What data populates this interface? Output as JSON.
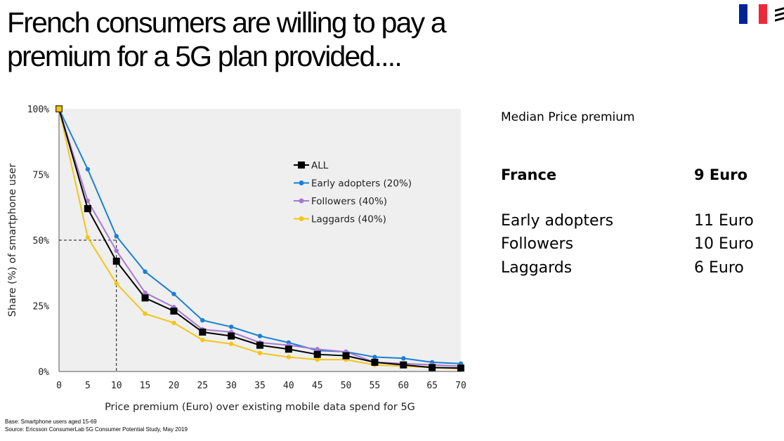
{
  "header": {
    "title_line1": "French consumers are willing to pay a",
    "title_line2": "premium for a 5G plan provided...."
  },
  "flag_colors": [
    "#002395",
    "#ffffff",
    "#ED2939"
  ],
  "logo_icon": "ericsson-logo-icon",
  "chart_data": {
    "type": "line",
    "xlabel": "Price premium (Euro) over existing mobile data spend for 5G",
    "ylabel": "Share (%) of smartphone user",
    "x": [
      0,
      5,
      10,
      15,
      20,
      25,
      30,
      35,
      40,
      45,
      50,
      55,
      60,
      65,
      70
    ],
    "xticks": [
      "0",
      "5",
      "10",
      "15",
      "20",
      "25",
      "30",
      "35",
      "40",
      "45",
      "50",
      "55",
      "60",
      "65",
      "70"
    ],
    "yticks": [
      "0%",
      "25%",
      "50%",
      "75%",
      "100%"
    ],
    "xlim": [
      0,
      70
    ],
    "ylim": [
      0,
      100
    ],
    "grid": false,
    "background": "#efefef",
    "legend_position": "center",
    "reference_point": [
      10,
      50
    ],
    "series": [
      {
        "name": "ALL",
        "color": "#000000",
        "marker": "square",
        "values": [
          100,
          62,
          42,
          28,
          23,
          15,
          13.5,
          10,
          8.5,
          6.5,
          6,
          3.5,
          2.5,
          1.5,
          1.3
        ]
      },
      {
        "name": "Early adopters (20%)",
        "color": "#1a7fd4",
        "marker": "circle",
        "values": [
          100,
          77,
          51.5,
          38,
          29.5,
          19.5,
          17,
          13.5,
          11,
          8,
          7.5,
          5.5,
          5,
          3.5,
          3
        ]
      },
      {
        "name": "Followers (40%)",
        "color": "#a67ad0",
        "marker": "circle",
        "values": [
          100,
          65,
          46,
          30,
          24.5,
          16,
          15,
          11,
          10,
          8.5,
          7.5,
          3.5,
          3,
          2.5,
          2
        ]
      },
      {
        "name": "Laggards (40%)",
        "color": "#f5c518",
        "marker": "circle",
        "values": [
          100,
          51,
          33.5,
          22,
          18.5,
          12,
          10.5,
          7,
          5.5,
          4.5,
          4.5,
          2.5,
          2,
          1.5,
          1
        ]
      }
    ]
  },
  "premium_table": {
    "title": "Median Price premium",
    "main_label": "France",
    "main_value": "9 Euro",
    "rows": [
      {
        "label": "Early adopters",
        "value": "11 Euro"
      },
      {
        "label": "Followers",
        "value": "10 Euro"
      },
      {
        "label": "Laggards",
        "value": "6 Euro"
      }
    ]
  },
  "footnotes": {
    "base": "Base: Smartphone users aged 15-69",
    "source": "Source: Ericsson ConsumerLab 5G Consumer Potential Study, May 2019"
  }
}
